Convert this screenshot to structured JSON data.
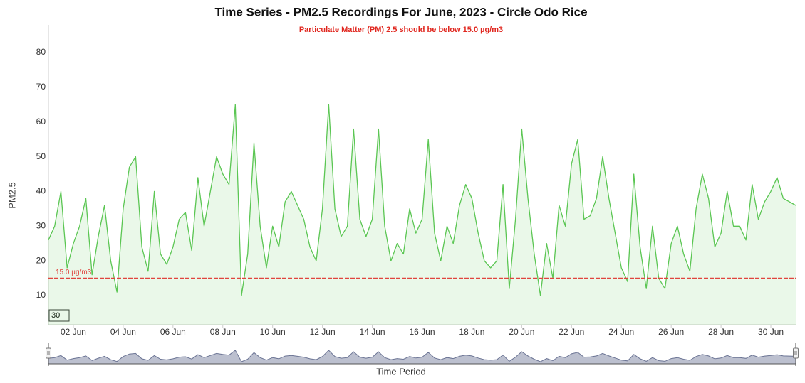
{
  "chart_data": {
    "type": "area",
    "title": "Time Series - PM2.5 Recordings For June, 2023 - Circle Odo Rice",
    "subtitle": "Particulate Matter (PM) 2.5 should be below 15.0 µg/m3",
    "y_label": "PM2.5",
    "x_label": "Time Period",
    "range_box": "30",
    "color": "#5bc653",
    "navigator_color": "#6b7494",
    "grid": false,
    "threshold": {
      "value": 15,
      "label": "15.0 µg/m3",
      "color": "#e0443e"
    },
    "xlim": [
      1,
      31
    ],
    "ylim": [
      1.6,
      88
    ],
    "yticks": [
      10,
      20,
      30,
      40,
      50,
      60,
      70,
      80
    ],
    "xticks": [
      {
        "value": 2,
        "label": "02 Jun"
      },
      {
        "value": 4,
        "label": "04 Jun"
      },
      {
        "value": 6,
        "label": "06 Jun"
      },
      {
        "value": 8,
        "label": "08 Jun"
      },
      {
        "value": 10,
        "label": "10 Jun"
      },
      {
        "value": 12,
        "label": "12 Jun"
      },
      {
        "value": 14,
        "label": "14 Jun"
      },
      {
        "value": 16,
        "label": "16 Jun"
      },
      {
        "value": 18,
        "label": "18 Jun"
      },
      {
        "value": 20,
        "label": "20 Jun"
      },
      {
        "value": 22,
        "label": "22 Jun"
      },
      {
        "value": 24,
        "label": "24 Jun"
      },
      {
        "value": 26,
        "label": "26 Jun"
      },
      {
        "value": 28,
        "label": "28 Jun"
      },
      {
        "value": 30,
        "label": "30 Jun"
      }
    ],
    "x": [
      1,
      1.25,
      1.5,
      1.75,
      2,
      2.25,
      2.5,
      2.75,
      3,
      3.25,
      3.5,
      3.75,
      4,
      4.25,
      4.5,
      4.75,
      5,
      5.25,
      5.5,
      5.75,
      6,
      6.25,
      6.5,
      6.75,
      7,
      7.25,
      7.5,
      7.75,
      8,
      8.25,
      8.5,
      8.75,
      9,
      9.25,
      9.5,
      9.75,
      10,
      10.25,
      10.5,
      10.75,
      11,
      11.25,
      11.5,
      11.75,
      12,
      12.25,
      12.5,
      12.75,
      13,
      13.25,
      13.5,
      13.75,
      14,
      14.25,
      14.5,
      14.75,
      15,
      15.25,
      15.5,
      15.75,
      16,
      16.25,
      16.5,
      16.75,
      17,
      17.25,
      17.5,
      17.75,
      18,
      18.25,
      18.5,
      18.75,
      19,
      19.25,
      19.5,
      19.75,
      20,
      20.25,
      20.5,
      20.75,
      21,
      21.25,
      21.5,
      21.75,
      22,
      22.25,
      22.5,
      22.75,
      23,
      23.25,
      23.5,
      23.75,
      24,
      24.25,
      24.5,
      24.75,
      25,
      25.25,
      25.5,
      25.75,
      26,
      26.25,
      26.5,
      26.75,
      27,
      27.25,
      27.5,
      27.75,
      28,
      28.25,
      28.5,
      28.75,
      29,
      29.25,
      29.5,
      29.75,
      30,
      30.25,
      30.5,
      30.75,
      31
    ],
    "values": [
      26,
      30,
      40,
      18,
      25,
      30,
      38,
      16,
      27,
      36,
      20,
      11,
      35,
      47,
      50,
      24,
      17,
      40,
      22,
      19,
      24,
      32,
      34,
      23,
      44,
      30,
      40,
      50,
      45,
      42,
      65,
      10,
      22,
      54,
      30,
      18,
      30,
      24,
      37,
      40,
      36,
      32,
      24,
      20,
      35,
      65,
      35,
      27,
      30,
      58,
      32,
      27,
      32,
      58,
      30,
      20,
      25,
      22,
      35,
      28,
      32,
      55,
      28,
      20,
      30,
      25,
      36,
      42,
      38,
      28,
      20,
      18,
      20,
      42,
      12,
      32,
      58,
      38,
      22,
      10,
      25,
      15,
      36,
      30,
      48,
      55,
      32,
      33,
      38,
      50,
      38,
      28,
      18,
      14,
      45,
      24,
      12,
      30,
      15,
      12,
      25,
      30,
      22,
      17,
      35,
      45,
      38,
      24,
      28,
      40,
      30,
      30,
      26,
      42,
      32,
      37,
      40,
      44,
      38,
      37,
      36
    ]
  }
}
